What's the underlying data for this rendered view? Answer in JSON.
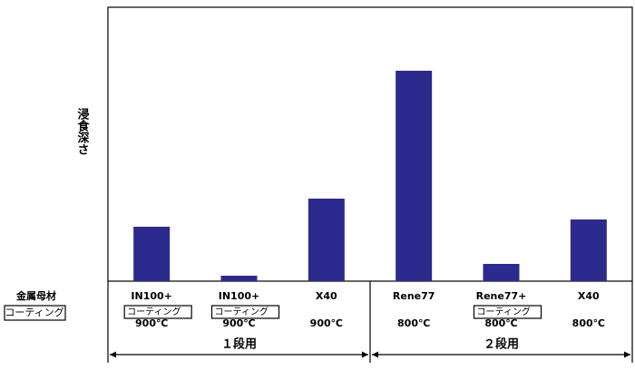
{
  "chart_data": {
    "type": "bar",
    "ylabel": "浸食深さ",
    "categories": [
      "IN100+",
      "IN100+",
      "X40",
      "Rene77",
      "Rene77+",
      "X40"
    ],
    "coated": [
      true,
      true,
      false,
      false,
      true,
      false
    ],
    "coating_label": "コーティング",
    "base_material_label": "金属母材",
    "temperatures": [
      "900℃",
      "900℃",
      "900℃",
      "800℃",
      "800℃",
      "800℃"
    ],
    "groups": [
      "１段用",
      "２段用"
    ],
    "values": [
      60,
      6,
      91,
      232,
      19,
      68
    ],
    "ylim": [
      0,
      302
    ],
    "color": "#2d2a8e"
  }
}
